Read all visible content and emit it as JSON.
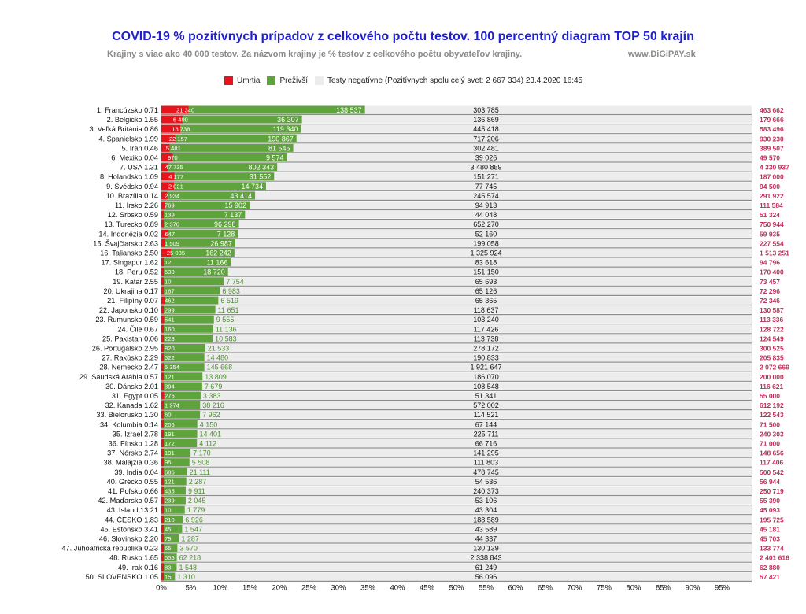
{
  "header": {
    "title": "COVID-19  % pozitívnych prípadov z celkového počtu testov.  100 percentný  diagram TOP 50 krajín",
    "subtitle": "Krajiny s viac ako 40 000 testov.   Za názvom krajiny je % testov  z celkového počtu obyvateľov krajiny.",
    "source": "www.DiGiPAY.sk"
  },
  "legend": {
    "deaths": "Úmrtia",
    "survived": "Preživší",
    "negative": "Testy negatívne (Pozitívnych spolu celý svet: 2 667 334) 23.4.2020 16:45"
  },
  "colors": {
    "deaths": "#e8141b",
    "survived": "#5fa33d",
    "negative": "#ececec",
    "total": "#c0305a",
    "title": "#1f1fd0"
  },
  "chart_data": {
    "type": "bar",
    "orientation": "horizontal",
    "stacking": "100-percent",
    "xlim": [
      0,
      100
    ],
    "x_ticks": [
      "0%",
      "5%",
      "10%",
      "15%",
      "20%",
      "25%",
      "30%",
      "35%",
      "40%",
      "45%",
      "50%",
      "55%",
      "60%",
      "65%",
      "70%",
      "75%",
      "80%",
      "85%",
      "90%",
      "95%"
    ],
    "grid": false,
    "legend_position": "top",
    "series_names": [
      "Úmrtia",
      "Preživší",
      "Testy negatívne"
    ],
    "rows": [
      {
        "label": "1. Francúzsko 0.71",
        "deaths": "21 340",
        "survived": "138 537",
        "negative": "303 785",
        "total": "463 662",
        "deaths_n": 21340,
        "survived_n": 138537,
        "negative_n": 303785
      },
      {
        "label": "2. Belgicko 1.55",
        "deaths": "6 490",
        "survived": "36 307",
        "negative": "136 869",
        "total": "179 666",
        "deaths_n": 6490,
        "survived_n": 36307,
        "negative_n": 136869
      },
      {
        "label": "3. Veľká Británia 0.86",
        "deaths": "18 738",
        "survived": "119 340",
        "negative": "445 418",
        "total": "583 496",
        "deaths_n": 18738,
        "survived_n": 119340,
        "negative_n": 445418
      },
      {
        "label": "4. Španielsko 1.99",
        "deaths": "22 157",
        "survived": "190 867",
        "negative": "717 206",
        "total": "930 230",
        "deaths_n": 22157,
        "survived_n": 190867,
        "negative_n": 717206
      },
      {
        "label": "5. Irán 0.46",
        "deaths": "5 481",
        "survived": "81 545",
        "negative": "302 481",
        "total": "389 507",
        "deaths_n": 5481,
        "survived_n": 81545,
        "negative_n": 302481
      },
      {
        "label": "6. Mexiko 0.04",
        "deaths": "970",
        "survived": "9 574",
        "negative": "39 026",
        "total": "49 570",
        "deaths_n": 970,
        "survived_n": 9574,
        "negative_n": 39026
      },
      {
        "label": "7. USA 1.31",
        "deaths": "47 735",
        "survived": "802 343",
        "negative": "3 480 859",
        "total": "4 330 937",
        "deaths_n": 47735,
        "survived_n": 802343,
        "negative_n": 3480859
      },
      {
        "label": "8. Holandsko 1.09",
        "deaths": "4 177",
        "survived": "31 552",
        "negative": "151 271",
        "total": "187 000",
        "deaths_n": 4177,
        "survived_n": 31552,
        "negative_n": 151271
      },
      {
        "label": "9. Švédsko 0.94",
        "deaths": "2 021",
        "survived": "14 734",
        "negative": "77 745",
        "total": "94 500",
        "deaths_n": 2021,
        "survived_n": 14734,
        "negative_n": 77745
      },
      {
        "label": "10. Brazília 0.14",
        "deaths": "2 934",
        "survived": "43 414",
        "negative": "245 574",
        "total": "291 922",
        "deaths_n": 2934,
        "survived_n": 43414,
        "negative_n": 245574
      },
      {
        "label": "11. Írsko 2.26",
        "deaths": "769",
        "survived": "15 902",
        "negative": "94 913",
        "total": "111 584",
        "deaths_n": 769,
        "survived_n": 15902,
        "negative_n": 94913
      },
      {
        "label": "12. Srbsko 0.59",
        "deaths": "139",
        "survived": "7 137",
        "negative": "44 048",
        "total": "51 324",
        "deaths_n": 139,
        "survived_n": 7137,
        "negative_n": 44048
      },
      {
        "label": "13. Turecko 0.89",
        "deaths": "2 376",
        "survived": "96 298",
        "negative": "652 270",
        "total": "750 944",
        "deaths_n": 2376,
        "survived_n": 96298,
        "negative_n": 652270
      },
      {
        "label": "14. Indonézia 0.02",
        "deaths": "647",
        "survived": "7 128",
        "negative": "52 160",
        "total": "59 935",
        "deaths_n": 647,
        "survived_n": 7128,
        "negative_n": 52160
      },
      {
        "label": "15. Švajčiarsko 2.63",
        "deaths": "1 509",
        "survived": "26 987",
        "negative": "199 058",
        "total": "227 554",
        "deaths_n": 1509,
        "survived_n": 26987,
        "negative_n": 199058
      },
      {
        "label": "16. Taliansko 2.50",
        "deaths": "25 085",
        "survived": "162 242",
        "negative": "1 325 924",
        "total": "1 513 251",
        "deaths_n": 25085,
        "survived_n": 162242,
        "negative_n": 1325924
      },
      {
        "label": "17. Singapur 1.62",
        "deaths": "12",
        "survived": "11 166",
        "negative": "83 618",
        "total": "94 796",
        "deaths_n": 12,
        "survived_n": 11166,
        "negative_n": 83618
      },
      {
        "label": "18. Peru 0.52",
        "deaths": "530",
        "survived": "18 720",
        "negative": "151 150",
        "total": "170 400",
        "deaths_n": 530,
        "survived_n": 18720,
        "negative_n": 151150
      },
      {
        "label": "19. Katar 2.55",
        "deaths": "10",
        "survived": "7 754",
        "negative": "65 693",
        "total": "73 457",
        "deaths_n": 10,
        "survived_n": 7754,
        "negative_n": 65693
      },
      {
        "label": "20. Ukrajina 0.17",
        "deaths": "187",
        "survived": "6 983",
        "negative": "65 126",
        "total": "72 296",
        "deaths_n": 187,
        "survived_n": 6983,
        "negative_n": 65126
      },
      {
        "label": "21. Filipíny 0.07",
        "deaths": "462",
        "survived": "6 519",
        "negative": "65 365",
        "total": "72 346",
        "deaths_n": 462,
        "survived_n": 6519,
        "negative_n": 65365
      },
      {
        "label": "22. Japonsko 0.10",
        "deaths": "299",
        "survived": "11 651",
        "negative": "118 637",
        "total": "130 587",
        "deaths_n": 299,
        "survived_n": 11651,
        "negative_n": 118637
      },
      {
        "label": "23. Rumunsko 0.59",
        "deaths": "541",
        "survived": "9 555",
        "negative": "103 240",
        "total": "113 336",
        "deaths_n": 541,
        "survived_n": 9555,
        "negative_n": 103240
      },
      {
        "label": "24. Čile 0.67",
        "deaths": "160",
        "survived": "11 136",
        "negative": "117 426",
        "total": "128 722",
        "deaths_n": 160,
        "survived_n": 11136,
        "negative_n": 117426
      },
      {
        "label": "25. Pakistan 0.06",
        "deaths": "228",
        "survived": "10 583",
        "negative": "113 738",
        "total": "124 549",
        "deaths_n": 228,
        "survived_n": 10583,
        "negative_n": 113738
      },
      {
        "label": "26. Portugalsko 2.95",
        "deaths": "820",
        "survived": "21 533",
        "negative": "278 172",
        "total": "300 525",
        "deaths_n": 820,
        "survived_n": 21533,
        "negative_n": 278172
      },
      {
        "label": "27. Rakúsko 2.29",
        "deaths": "522",
        "survived": "14 480",
        "negative": "190 833",
        "total": "205 835",
        "deaths_n": 522,
        "survived_n": 14480,
        "negative_n": 190833
      },
      {
        "label": "28. Nemecko 2.47",
        "deaths": "5 354",
        "survived": "145 668",
        "negative": "1 921 647",
        "total": "2 072 669",
        "deaths_n": 5354,
        "survived_n": 145668,
        "negative_n": 1921647
      },
      {
        "label": "29. Saudská Arábia 0.57",
        "deaths": "121",
        "survived": "13 809",
        "negative": "186 070",
        "total": "200 000",
        "deaths_n": 121,
        "survived_n": 13809,
        "negative_n": 186070
      },
      {
        "label": "30. Dánsko 2.01",
        "deaths": "394",
        "survived": "7 679",
        "negative": "108 548",
        "total": "116 621",
        "deaths_n": 394,
        "survived_n": 7679,
        "negative_n": 108548
      },
      {
        "label": "31. Egypt 0.05",
        "deaths": "276",
        "survived": "3 383",
        "negative": "51 341",
        "total": "55 000",
        "deaths_n": 276,
        "survived_n": 3383,
        "negative_n": 51341
      },
      {
        "label": "32. Kanada 1.62",
        "deaths": "1 974",
        "survived": "38 216",
        "negative": "572 002",
        "total": "612 192",
        "deaths_n": 1974,
        "survived_n": 38216,
        "negative_n": 572002
      },
      {
        "label": "33. Bielorusko 1.30",
        "deaths": "60",
        "survived": "7 962",
        "negative": "114 521",
        "total": "122 543",
        "deaths_n": 60,
        "survived_n": 7962,
        "negative_n": 114521
      },
      {
        "label": "34. Kolumbia 0.14",
        "deaths": "206",
        "survived": "4 150",
        "negative": "67 144",
        "total": "71 500",
        "deaths_n": 206,
        "survived_n": 4150,
        "negative_n": 67144
      },
      {
        "label": "35. Izrael 2.78",
        "deaths": "191",
        "survived": "14 401",
        "negative": "225 711",
        "total": "240 303",
        "deaths_n": 191,
        "survived_n": 14401,
        "negative_n": 225711
      },
      {
        "label": "36. Fínsko 1.28",
        "deaths": "172",
        "survived": "4 112",
        "negative": "66 716",
        "total": "71 000",
        "deaths_n": 172,
        "survived_n": 4112,
        "negative_n": 66716
      },
      {
        "label": "37. Nórsko 2.74",
        "deaths": "191",
        "survived": "7 170",
        "negative": "141 295",
        "total": "148 656",
        "deaths_n": 191,
        "survived_n": 7170,
        "negative_n": 141295
      },
      {
        "label": "38. Malajzia 0.36",
        "deaths": "95",
        "survived": "5 508",
        "negative": "111 803",
        "total": "117 406",
        "deaths_n": 95,
        "survived_n": 5508,
        "negative_n": 111803
      },
      {
        "label": "39. India 0.04",
        "deaths": "686",
        "survived": "21 111",
        "negative": "478 745",
        "total": "500 542",
        "deaths_n": 686,
        "survived_n": 21111,
        "negative_n": 478745
      },
      {
        "label": "40. Grécko 0.55",
        "deaths": "121",
        "survived": "2 287",
        "negative": "54 536",
        "total": "56 944",
        "deaths_n": 121,
        "survived_n": 2287,
        "negative_n": 54536
      },
      {
        "label": "41. Poľsko 0.66",
        "deaths": "435",
        "survived": "9 911",
        "negative": "240 373",
        "total": "250 719",
        "deaths_n": 435,
        "survived_n": 9911,
        "negative_n": 240373
      },
      {
        "label": "42. Maďarsko 0.57",
        "deaths": "239",
        "survived": "2 045",
        "negative": "53 106",
        "total": "55 390",
        "deaths_n": 239,
        "survived_n": 2045,
        "negative_n": 53106
      },
      {
        "label": "43. Island 13.21",
        "deaths": "10",
        "survived": "1 779",
        "negative": "43 304",
        "total": "45 093",
        "deaths_n": 10,
        "survived_n": 1779,
        "negative_n": 43304
      },
      {
        "label": "44. ČESKO 1.83",
        "deaths": "210",
        "survived": "6 926",
        "negative": "188 589",
        "total": "195 725",
        "deaths_n": 210,
        "survived_n": 6926,
        "negative_n": 188589
      },
      {
        "label": "45. Estónsko 3.41",
        "deaths": "45",
        "survived": "1 547",
        "negative": "43 589",
        "total": "45 181",
        "deaths_n": 45,
        "survived_n": 1547,
        "negative_n": 43589
      },
      {
        "label": "46. Slovinsko 2.20",
        "deaths": "79",
        "survived": "1 287",
        "negative": "44 337",
        "total": "45 703",
        "deaths_n": 79,
        "survived_n": 1287,
        "negative_n": 44337
      },
      {
        "label": "47. Juhoafrická republika 0.23",
        "deaths": "65",
        "survived": "3 570",
        "negative": "130 139",
        "total": "133 774",
        "deaths_n": 65,
        "survived_n": 3570,
        "negative_n": 130139
      },
      {
        "label": "48. Rusko 1.65",
        "deaths": "555",
        "survived": "62 218",
        "negative": "2 338 843",
        "total": "2 401 616",
        "deaths_n": 555,
        "survived_n": 62218,
        "negative_n": 2338843
      },
      {
        "label": "49. Irak 0.16",
        "deaths": "83",
        "survived": "1 548",
        "negative": "61 249",
        "total": "62 880",
        "deaths_n": 83,
        "survived_n": 1548,
        "negative_n": 61249
      },
      {
        "label": "50. SLOVENSKO 1.05",
        "deaths": "15",
        "survived": "1 310",
        "negative": "56 096",
        "total": "57 421",
        "deaths_n": 15,
        "survived_n": 1310,
        "negative_n": 56096
      }
    ]
  }
}
